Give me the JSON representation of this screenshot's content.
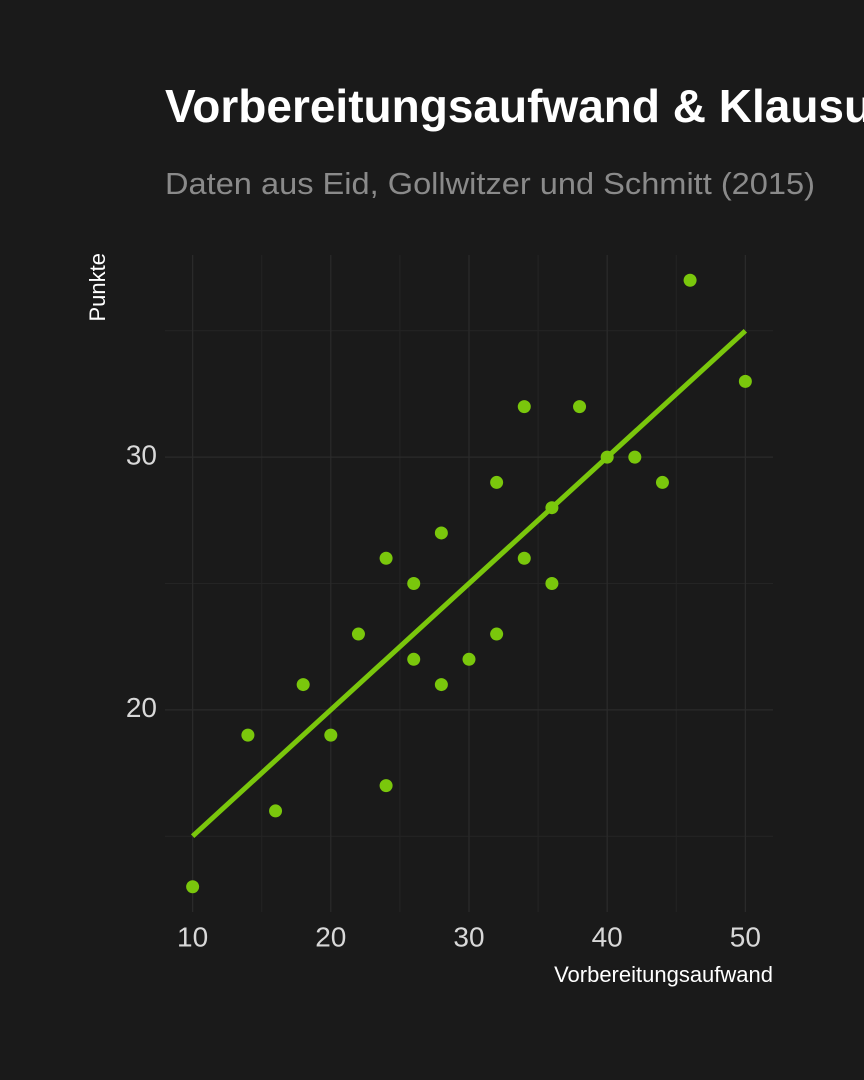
{
  "chart_data": {
    "type": "scatter",
    "title": "Vorbereitungsaufwand & Klausurpunkte",
    "subtitle": "Daten aus Eid, Gollwitzer und Schmitt (2015)",
    "x_label": "Vorbereitungsaufwand",
    "y_label": "Punkte",
    "color": "#7ac70c",
    "x": [
      10,
      14,
      16,
      18,
      20,
      22,
      24,
      24,
      26,
      26,
      28,
      28,
      30,
      32,
      32,
      34,
      34,
      36,
      36,
      38,
      40,
      42,
      44,
      46,
      50
    ],
    "values": [
      13,
      19,
      16,
      21,
      19,
      23,
      26,
      17,
      25,
      22,
      27,
      21,
      22,
      29,
      23,
      32,
      26,
      28,
      25,
      32,
      30,
      30,
      29,
      37,
      33
    ],
    "fit": {
      "x": [
        10,
        50
      ],
      "values": [
        15,
        35
      ]
    },
    "xlim": [
      8,
      52
    ],
    "ylim": [
      12,
      38
    ],
    "xticks": [
      10,
      20,
      30,
      40,
      50
    ],
    "yticks": [
      20,
      30
    ],
    "xminorticks": [
      15,
      25,
      35,
      45
    ],
    "yminorticks": [
      15,
      25,
      35
    ],
    "grid": true
  }
}
